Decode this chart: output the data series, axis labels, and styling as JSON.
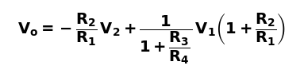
{
  "formula": "$\\mathbf{V_o = -\\dfrac{R_2}{R_1}\\,V_2 + \\dfrac{1}{1+\\dfrac{R_3}{R_4}}\\,V_1\\left(1+\\dfrac{R_2}{R_1}\\right)}$",
  "background_color": "#ffffff",
  "text_color": "#000000",
  "fontsize": 14,
  "figsize": [
    3.83,
    0.97
  ],
  "dpi": 100
}
